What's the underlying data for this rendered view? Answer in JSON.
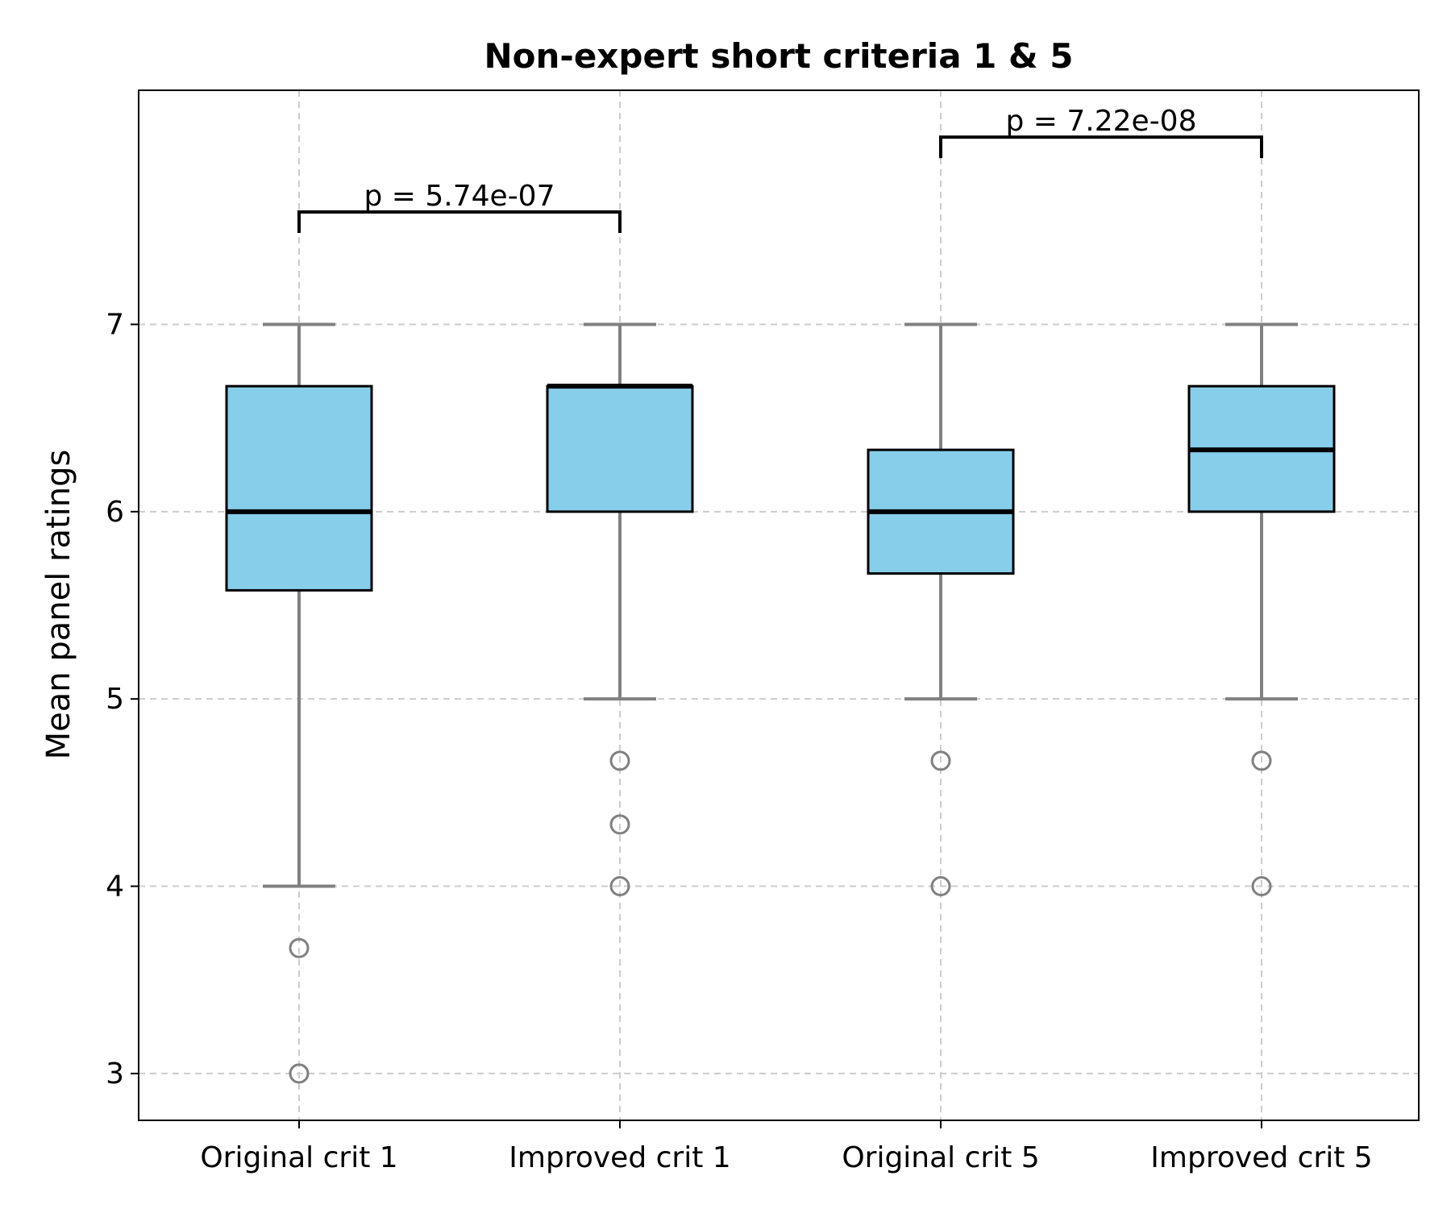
{
  "chart_data": {
    "type": "box",
    "title": "Non-expert short criteria 1 & 5",
    "xlabel": "",
    "ylabel": "Mean panel ratings",
    "ylim": [
      2.75,
      8.25
    ],
    "yticks": [
      3,
      4,
      5,
      6,
      7
    ],
    "grid": true,
    "categories": [
      "Original crit 1",
      "Improved crit 1",
      "Original crit 5",
      "Improved crit 5"
    ],
    "boxes": [
      {
        "category": "Original crit 1",
        "whisker_low": 4.0,
        "q1": 5.58,
        "median": 6.0,
        "q3": 6.67,
        "whisker_high": 7.0,
        "outliers": [
          3.67,
          3.0
        ]
      },
      {
        "category": "Improved crit 1",
        "whisker_low": 5.0,
        "q1": 6.0,
        "median": 6.67,
        "q3": 6.67,
        "whisker_high": 7.0,
        "outliers": [
          4.67,
          4.33,
          4.0
        ]
      },
      {
        "category": "Original crit 5",
        "whisker_low": 5.0,
        "q1": 5.67,
        "median": 6.0,
        "q3": 6.33,
        "whisker_high": 7.0,
        "outliers": [
          4.67,
          4.0
        ]
      },
      {
        "category": "Improved crit 5",
        "whisker_low": 5.0,
        "q1": 6.0,
        "median": 6.33,
        "q3": 6.67,
        "whisker_high": 7.0,
        "outliers": [
          4.67,
          4.0
        ]
      }
    ],
    "annotations": [
      {
        "from": "Original crit 1",
        "to": "Improved crit 1",
        "y": 7.6,
        "text": "p = 5.74e-07"
      },
      {
        "from": "Original crit 5",
        "to": "Improved crit 5",
        "y": 8.0,
        "text": "p = 7.22e-08"
      }
    ],
    "colors": {
      "box_fill": "#87ceeb",
      "box_edge": "#000000",
      "whisker": "#808080",
      "median": "#000000",
      "grid": "#cccccc",
      "outlier": "#808080"
    }
  }
}
